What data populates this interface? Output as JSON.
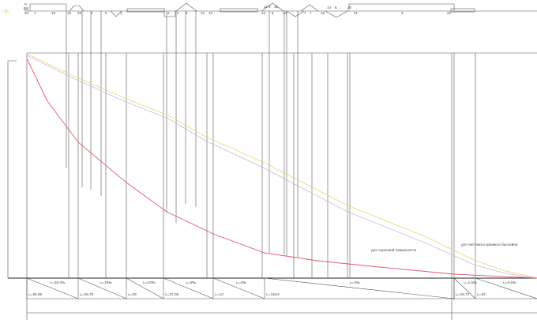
{
  "top_marker": {
    "letter": "n",
    "code": "БК"
  },
  "corner_note": "~ бр",
  "profile_labels": [
    {
      "text": "20"
    },
    {
      "text": "1"
    },
    {
      "text": "10"
    },
    {
      "text": "15"
    },
    {
      "text": "25"
    },
    {
      "text": "4"
    },
    {
      "text": "5"
    },
    {
      "text": "1"
    },
    {
      "text": "2"
    },
    {
      "text": "2"
    },
    {
      "text": "3"
    },
    {
      "text": "12"
    },
    {
      "text": "13"
    },
    {
      "text": "12"
    },
    {
      "text": "5"
    },
    {
      "text": "14"
    },
    {
      "text": "11"
    },
    {
      "text": "9"
    },
    {
      "text": "15"
    },
    {
      "text": "7"
    },
    {
      "text": "7"
    },
    {
      "text": "16"
    },
    {
      "text": "14"
    },
    {
      "text": "6"
    },
    {
      "text": "20"
    },
    {
      "text": "21"
    },
    {
      "text": "3"
    },
    {
      "text": "22"
    }
  ],
  "curve_labels": {
    "red": "для черновой поверхности",
    "yellow": "для чистового краевого бассейна"
  },
  "curve_colors": {
    "yellow": "#e8d77a",
    "purple": "#c9b8e6",
    "red": "#e05b6a"
  },
  "segments": [
    {
      "top": "i₀=28,4‰",
      "bottom": "i₀=60,69"
    },
    {
      "top": "i₀=19‰",
      "bottom": "i₀=28,79"
    },
    {
      "top": "i₀=10‰",
      "bottom": "i₀=29"
    },
    {
      "top": "i₀=8‰",
      "bottom": "i₀=37,06"
    },
    {
      "top": "i₀=5‰",
      "bottom": "i₀=13"
    },
    {
      "top": "i₀=2‰",
      "bottom": "i₀=116,5"
    },
    {
      "top": "i₀=1,5‰",
      "bottom": "i₀=15,72"
    },
    {
      "top": "i₀=0,6‰",
      "bottom": "i₀=53"
    }
  ]
}
